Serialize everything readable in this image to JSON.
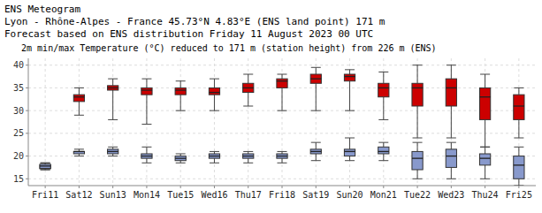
{
  "chart_data": {
    "type": "box",
    "title": [
      "ENS Meteogram",
      "Lyon - Rhône-Alpes - France 45.73°N 4.83°E (ENS land point) 171 m",
      "Forecast based on ENS distribution Friday 11 August 2023 00 UTC"
    ],
    "subtitle": "  2m min/max Temperature (°C) reduced to 171 m (station height) from 226 m (ENS)",
    "categories": [
      "Fri11",
      "Sat12",
      "Sun13",
      "Mon14",
      "Tue15",
      "Wed16",
      "Thu17",
      "Fri18",
      "Sat19",
      "Sun20",
      "Mon21",
      "Tue22",
      "Wed23",
      "Thu24",
      "Fri25"
    ],
    "series": [
      {
        "color": "#cc0000",
        "whisker_lo": [
          17.0,
          29.0,
          28.0,
          27.0,
          30.0,
          30.0,
          31.0,
          30.0,
          30.0,
          30.0,
          28.0,
          24.0,
          24.0,
          22.0,
          24.0
        ],
        "q1": [
          17.2,
          32.0,
          34.5,
          33.5,
          33.5,
          33.5,
          34.0,
          35.0,
          36.0,
          36.5,
          33.0,
          31.0,
          31.0,
          28.0,
          28.0
        ],
        "median": [
          17.5,
          33.0,
          35.0,
          34.5,
          34.5,
          34.0,
          35.0,
          36.5,
          37.0,
          37.5,
          35.0,
          35.0,
          35.0,
          33.0,
          31.0
        ],
        "q3": [
          18.0,
          33.5,
          35.5,
          35.0,
          35.0,
          35.0,
          36.0,
          37.0,
          38.0,
          38.0,
          36.0,
          36.0,
          37.0,
          35.0,
          33.5
        ],
        "whisker_hi": [
          18.5,
          35.0,
          37.0,
          37.0,
          36.5,
          37.0,
          38.0,
          38.0,
          39.5,
          39.0,
          38.5,
          40.0,
          40.0,
          38.0,
          35.0
        ]
      },
      {
        "color": "#8899cc",
        "whisker_lo": [
          17.0,
          20.0,
          20.0,
          18.5,
          18.5,
          18.5,
          18.5,
          18.5,
          19.0,
          19.0,
          19.0,
          15.0,
          15.0,
          15.0,
          13.5
        ],
        "q1": [
          17.3,
          20.5,
          20.5,
          19.5,
          19.0,
          19.5,
          19.5,
          19.5,
          20.5,
          20.0,
          20.5,
          17.0,
          17.5,
          18.0,
          15.0
        ],
        "median": [
          17.8,
          21.0,
          21.0,
          20.0,
          19.5,
          20.0,
          20.0,
          20.0,
          21.0,
          21.0,
          21.0,
          19.5,
          20.0,
          19.5,
          18.0
        ],
        "q3": [
          18.2,
          21.0,
          21.5,
          20.5,
          20.0,
          20.5,
          20.5,
          20.5,
          21.5,
          21.5,
          22.0,
          21.0,
          21.5,
          20.5,
          20.0
        ],
        "whisker_hi": [
          18.5,
          21.5,
          22.0,
          22.0,
          20.5,
          21.0,
          21.0,
          21.0,
          23.0,
          24.0,
          23.0,
          23.0,
          23.0,
          22.0,
          22.0
        ]
      }
    ],
    "ylim": [
      13.5,
      41.5
    ],
    "yticks": [
      15,
      20,
      25,
      30,
      35,
      40
    ],
    "grid": true
  }
}
